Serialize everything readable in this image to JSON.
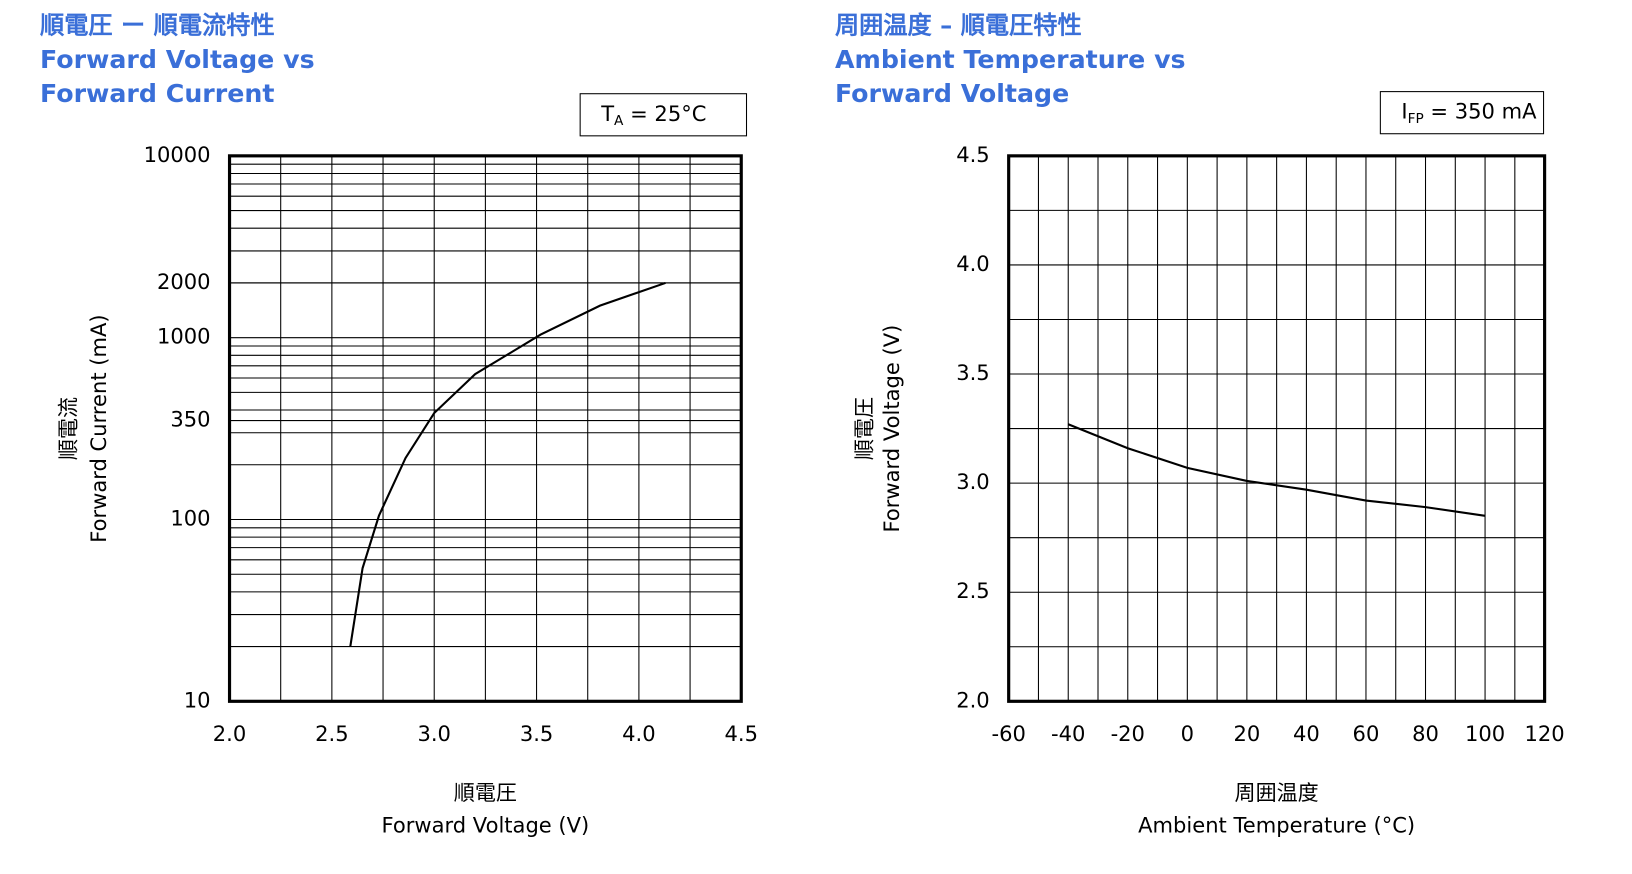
{
  "chart_data": [
    {
      "type": "line",
      "title": "順電圧 ー 順電流特性",
      "subtitle": [
        "Forward Voltage vs",
        "Forward Current"
      ],
      "annotation": {
        "text": "T",
        "sub": "A",
        "rest": " = 25°C"
      },
      "xlabel": [
        "順電圧",
        "Forward Voltage (V)"
      ],
      "ylabel": [
        "順電流",
        "Forward Current (mA)"
      ],
      "xlim": [
        2.0,
        4.5
      ],
      "xticks": [
        {
          "value": 2.0,
          "label": "2.0"
        },
        {
          "value": 2.5,
          "label": "2.5"
        },
        {
          "value": 3.0,
          "label": "3.0"
        },
        {
          "value": 3.5,
          "label": "3.5"
        },
        {
          "value": 4.0,
          "label": "4.0"
        },
        {
          "value": 4.5,
          "label": "4.5"
        }
      ],
      "ylim": [
        10,
        10000
      ],
      "yticks": [
        10,
        100,
        350,
        1000,
        2000,
        10000
      ],
      "yscale": "log",
      "grid": true,
      "color": "#000000",
      "x": [
        2.59,
        2.65,
        2.73,
        2.86,
        3.0,
        3.2,
        3.52,
        3.81,
        4.13
      ],
      "values": [
        20,
        54,
        105,
        218,
        385,
        630,
        1040,
        1500,
        2000
      ]
    },
    {
      "type": "line",
      "title": "周囲温度 – 順電圧特性",
      "subtitle": [
        "Ambient Temperature vs",
        "Forward Voltage"
      ],
      "annotation": {
        "text": "I",
        "sub": "FP",
        "rest": " = 350 mA"
      },
      "xlabel": [
        "周囲温度",
        "Ambient Temperature (°C)"
      ],
      "ylabel": [
        "順電圧",
        "Forward Voltage (V)"
      ],
      "xlim": [
        -60,
        120
      ],
      "xticks": [
        -60,
        -40,
        -20,
        0,
        20,
        40,
        60,
        80,
        100,
        120
      ],
      "ylim": [
        2.0,
        4.5
      ],
      "yticks": [
        {
          "value": 2.0,
          "label": "2.0"
        },
        {
          "value": 2.5,
          "label": "2.5"
        },
        {
          "value": 3.0,
          "label": "3.0"
        },
        {
          "value": 3.5,
          "label": "3.5"
        },
        {
          "value": 4.0,
          "label": "4.0"
        },
        {
          "value": 4.5,
          "label": "4.5"
        }
      ],
      "yscale": "linear",
      "grid": true,
      "color": "#000000",
      "x": [
        -40,
        -20,
        0,
        20,
        40,
        60,
        80,
        100
      ],
      "values": [
        3.27,
        3.16,
        3.07,
        3.01,
        2.97,
        2.92,
        2.89,
        2.85
      ]
    }
  ]
}
